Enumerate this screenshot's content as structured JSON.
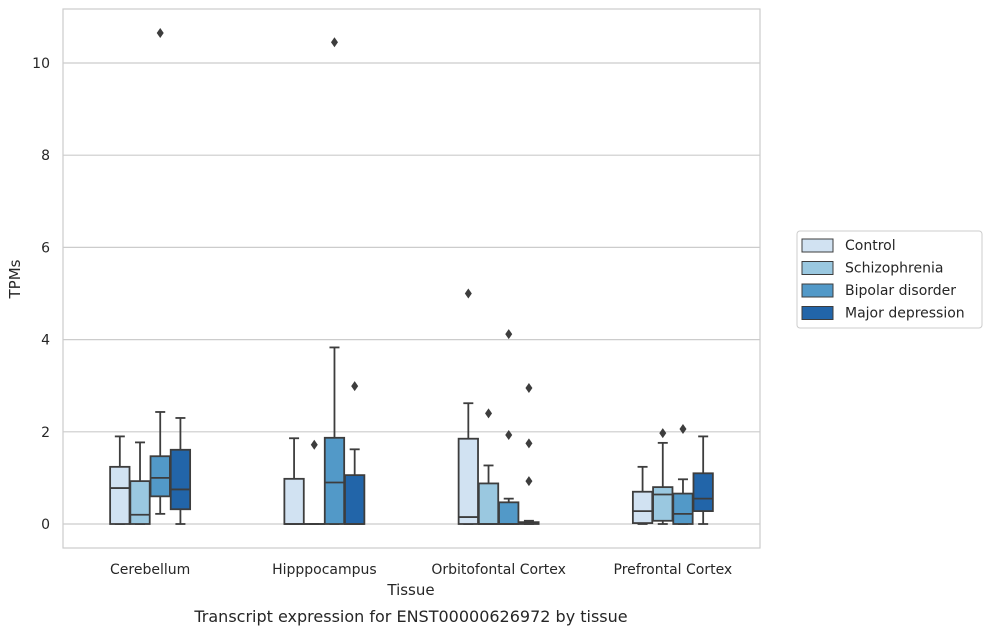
{
  "chart_data": {
    "type": "box",
    "xlabel": "Tissue",
    "ylabel": "TPMs",
    "caption": "Transcript expression for ENST00000626972 by tissue",
    "ylim": [
      -0.5,
      11.2
    ],
    "yticks": [
      "0",
      "2",
      "4",
      "6",
      "8",
      "10"
    ],
    "grid": "horizontal",
    "legend_position": "right",
    "categories": [
      "Cerebellum",
      "Hipppocampus",
      "Orbitofontal Cortex",
      "Prefrontal Cortex"
    ],
    "series": [
      {
        "name": "Control",
        "color": "#d1e2f2",
        "boxes": [
          {
            "q1": 0,
            "median": 0.78,
            "q3": 1.24,
            "whisker_low": 0,
            "whisker_high": 1.9,
            "outliers": []
          },
          {
            "q1": 0,
            "median": 0,
            "q3": 0.98,
            "whisker_low": 0,
            "whisker_high": 1.86,
            "outliers": []
          },
          {
            "q1": 0,
            "median": 0.15,
            "q3": 1.85,
            "whisker_low": 0,
            "whisker_high": 2.62,
            "outliers": [
              5.0
            ]
          },
          {
            "q1": 0.02,
            "median": 0.28,
            "q3": 0.7,
            "whisker_low": 0,
            "whisker_high": 1.24,
            "outliers": []
          }
        ]
      },
      {
        "name": "Schizophrenia",
        "color": "#9ac8e0",
        "boxes": [
          {
            "q1": 0,
            "median": 0.2,
            "q3": 0.93,
            "whisker_low": 0,
            "whisker_high": 1.77,
            "outliers": []
          },
          {
            "q1": 0,
            "median": 0,
            "q3": 0,
            "whisker_low": 0,
            "whisker_high": 0,
            "outliers": [
              1.72
            ]
          },
          {
            "q1": 0,
            "median": 0,
            "q3": 0.88,
            "whisker_low": 0,
            "whisker_high": 1.27,
            "outliers": [
              2.4
            ]
          },
          {
            "q1": 0.07,
            "median": 0.64,
            "q3": 0.8,
            "whisker_low": 0,
            "whisker_high": 1.76,
            "outliers": [
              1.97
            ]
          }
        ]
      },
      {
        "name": "Bipolar disorder",
        "color": "#5299c8",
        "boxes": [
          {
            "q1": 0.6,
            "median": 1.0,
            "q3": 1.47,
            "whisker_low": 0.22,
            "whisker_high": 2.43,
            "outliers": [
              10.65
            ]
          },
          {
            "q1": 0,
            "median": 0.9,
            "q3": 1.87,
            "whisker_low": 0,
            "whisker_high": 3.83,
            "outliers": [
              10.45
            ]
          },
          {
            "q1": 0,
            "median": 0,
            "q3": 0.47,
            "whisker_low": 0,
            "whisker_high": 0.55,
            "outliers": [
              4.12,
              1.93
            ]
          },
          {
            "q1": 0,
            "median": 0.22,
            "q3": 0.66,
            "whisker_low": 0,
            "whisker_high": 0.97,
            "outliers": [
              2.06
            ]
          }
        ]
      },
      {
        "name": "Major depression",
        "color": "#2265a9",
        "boxes": [
          {
            "q1": 0.32,
            "median": 0.75,
            "q3": 1.61,
            "whisker_low": 0,
            "whisker_high": 2.3,
            "outliers": []
          },
          {
            "q1": 0,
            "median": 0,
            "q3": 1.06,
            "whisker_low": 0,
            "whisker_high": 1.62,
            "outliers": [
              2.99
            ]
          },
          {
            "q1": 0,
            "median": 0.02,
            "q3": 0.04,
            "whisker_low": 0,
            "whisker_high": 0.07,
            "outliers": [
              2.95,
              1.75,
              0.93
            ]
          },
          {
            "q1": 0.28,
            "median": 0.55,
            "q3": 1.1,
            "whisker_low": 0,
            "whisker_high": 1.9,
            "outliers": []
          }
        ]
      }
    ]
  }
}
